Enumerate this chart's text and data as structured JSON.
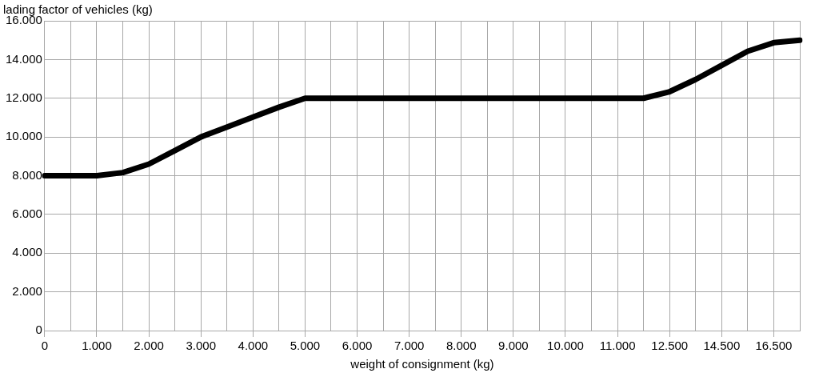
{
  "chart_data": {
    "type": "line",
    "xlabel": "weight of consignment (kg)",
    "ylabel": "lading factor of vehicles (kg)",
    "categories": [
      "0",
      null,
      "1.000",
      null,
      "2.000",
      null,
      "3.000",
      null,
      "4.000",
      null,
      "5.000",
      null,
      "6.000",
      null,
      "7.000",
      null,
      "8.000",
      null,
      "9.000",
      null,
      "10.000",
      null,
      "11.000",
      null,
      "12.500",
      null,
      "14.500",
      null,
      "16.500",
      null
    ],
    "series": [
      {
        "color": "#000000",
        "values": [
          8000,
          8000,
          8000,
          8160,
          8600,
          9300,
          10000,
          10510,
          11030,
          11540,
          12000,
          12000,
          12000,
          12000,
          12000,
          12000,
          12000,
          12000,
          12000,
          12000,
          12000,
          12000,
          12000,
          12000,
          12340,
          12970,
          13700,
          14430,
          14870,
          15000
        ]
      }
    ],
    "ylim": [
      0,
      16000
    ],
    "yticks": [
      0,
      {
        "value": 2000,
        "label": "2.000"
      },
      {
        "value": 4000,
        "label": "4.000"
      },
      {
        "value": 6000,
        "label": "6.000"
      },
      {
        "value": 8000,
        "label": "8.000"
      },
      {
        "value": 10000,
        "label": "10.000"
      },
      {
        "value": 12000,
        "label": "12.000"
      },
      {
        "value": 14000,
        "label": "14.000"
      },
      {
        "value": 16000,
        "label": "16.000"
      }
    ],
    "grid": true,
    "legend": false,
    "marker": "none",
    "line_style": "solid"
  }
}
